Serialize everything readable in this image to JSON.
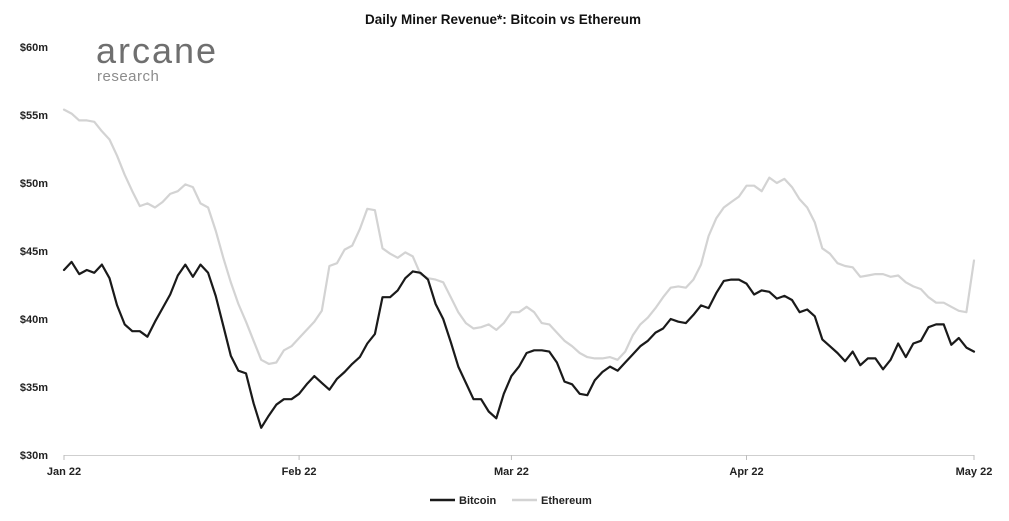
{
  "logo": {
    "name": "arcane",
    "subtitle": "research"
  },
  "chart_data": {
    "type": "line",
    "title": "Daily Miner Revenue*: Bitcoin vs Ethereum",
    "xlabel": "",
    "ylabel": "",
    "ylim": [
      30,
      60
    ],
    "y_unit": "USD millions",
    "y_ticks": [
      30,
      35,
      40,
      45,
      50,
      55,
      60
    ],
    "y_tick_labels": [
      "$30m",
      "$35m",
      "$40m",
      "$45m",
      "$50m",
      "$55m",
      "$60m"
    ],
    "x_ticks": [
      "Jan 22",
      "Feb 22",
      "Mar 22",
      "Apr 22",
      "May 22"
    ],
    "x_tick_days": [
      0,
      31,
      59,
      90,
      120
    ],
    "x": [
      0,
      1,
      2,
      3,
      4,
      5,
      6,
      7,
      8,
      9,
      10,
      11,
      12,
      13,
      14,
      15,
      16,
      17,
      18,
      19,
      20,
      21,
      22,
      23,
      24,
      25,
      26,
      27,
      28,
      29,
      30,
      31,
      32,
      33,
      34,
      35,
      36,
      37,
      38,
      39,
      40,
      41,
      42,
      43,
      44,
      45,
      46,
      47,
      48,
      49,
      50,
      51,
      52,
      53,
      54,
      55,
      56,
      57,
      58,
      59,
      60,
      61,
      62,
      63,
      64,
      65,
      66,
      67,
      68,
      69,
      70,
      71,
      72,
      73,
      74,
      75,
      76,
      77,
      78,
      79,
      80,
      81,
      82,
      83,
      84,
      85,
      86,
      87,
      88,
      89,
      90,
      91,
      92,
      93,
      94,
      95,
      96,
      97,
      98,
      99,
      100,
      101,
      102,
      103,
      104,
      105,
      106,
      107,
      108,
      109,
      110,
      111,
      112,
      113,
      114,
      115,
      116,
      117,
      118,
      119,
      120
    ],
    "grid": false,
    "legend_position": "bottom-center",
    "series": [
      {
        "name": "Bitcoin",
        "color": "#1a1a1a",
        "values": [
          43.6,
          44.2,
          43.3,
          43.6,
          43.4,
          44.0,
          43.0,
          41.0,
          39.6,
          39.1,
          39.1,
          38.7,
          39.8,
          40.8,
          41.8,
          43.2,
          44.0,
          43.1,
          44.0,
          43.4,
          41.7,
          39.5,
          37.3,
          36.2,
          36.0,
          33.8,
          32.0,
          32.9,
          33.7,
          34.1,
          34.1,
          34.5,
          35.2,
          35.8,
          35.3,
          34.8,
          35.6,
          36.1,
          36.7,
          37.2,
          38.2,
          38.9,
          41.6,
          41.6,
          42.1,
          43.0,
          43.5,
          43.4,
          42.9,
          41.1,
          40.0,
          38.3,
          36.5,
          35.3,
          34.1,
          34.1,
          33.2,
          32.7,
          34.5,
          35.8,
          36.5,
          37.5,
          37.7,
          37.7,
          37.6,
          36.8,
          35.4,
          35.2,
          34.5,
          34.4,
          35.5,
          36.1,
          36.5,
          36.2,
          36.8,
          37.4,
          38.0,
          38.4,
          39.0,
          39.3,
          40.0,
          39.8,
          39.7,
          40.3,
          41.0,
          40.8,
          41.9,
          42.8,
          42.9,
          42.9,
          42.6,
          41.8,
          42.1,
          42.0,
          41.5,
          41.7,
          41.4,
          40.5,
          40.7,
          40.2,
          38.5,
          38.0,
          37.5,
          36.9,
          37.6,
          36.6,
          37.1,
          37.1,
          36.3,
          37.0,
          38.2,
          37.2,
          38.2,
          38.4,
          39.4,
          39.6,
          39.6,
          38.1,
          38.6,
          37.9,
          37.6
        ]
      },
      {
        "name": "Ethereum",
        "color": "#d3d3d3",
        "values": [
          55.4,
          55.1,
          54.6,
          54.6,
          54.5,
          53.8,
          53.2,
          52.0,
          50.6,
          49.4,
          48.3,
          48.5,
          48.2,
          48.6,
          49.2,
          49.4,
          49.9,
          49.7,
          48.5,
          48.2,
          46.5,
          44.5,
          42.7,
          41.1,
          39.8,
          38.4,
          37.0,
          36.7,
          36.8,
          37.7,
          38.0,
          38.6,
          39.2,
          39.8,
          40.6,
          43.9,
          44.1,
          45.1,
          45.4,
          46.6,
          48.1,
          48.0,
          45.2,
          44.8,
          44.5,
          44.9,
          44.6,
          43.3,
          43.0,
          42.9,
          42.7,
          41.6,
          40.5,
          39.7,
          39.3,
          39.4,
          39.6,
          39.2,
          39.7,
          40.5,
          40.5,
          40.9,
          40.5,
          39.7,
          39.6,
          39.0,
          38.4,
          38.0,
          37.5,
          37.2,
          37.1,
          37.1,
          37.2,
          37.0,
          37.6,
          38.8,
          39.6,
          40.1,
          40.8,
          41.6,
          42.3,
          42.4,
          42.3,
          42.9,
          44.0,
          46.1,
          47.4,
          48.2,
          48.6,
          49.0,
          49.8,
          49.8,
          49.4,
          50.4,
          50.0,
          50.3,
          49.7,
          48.8,
          48.2,
          47.1,
          45.2,
          44.8,
          44.1,
          43.9,
          43.8,
          43.1,
          43.2,
          43.3,
          43.3,
          43.1,
          43.2,
          42.7,
          42.4,
          42.2,
          41.6,
          41.2,
          41.2,
          40.9,
          40.6,
          40.5,
          44.3
        ]
      }
    ]
  }
}
